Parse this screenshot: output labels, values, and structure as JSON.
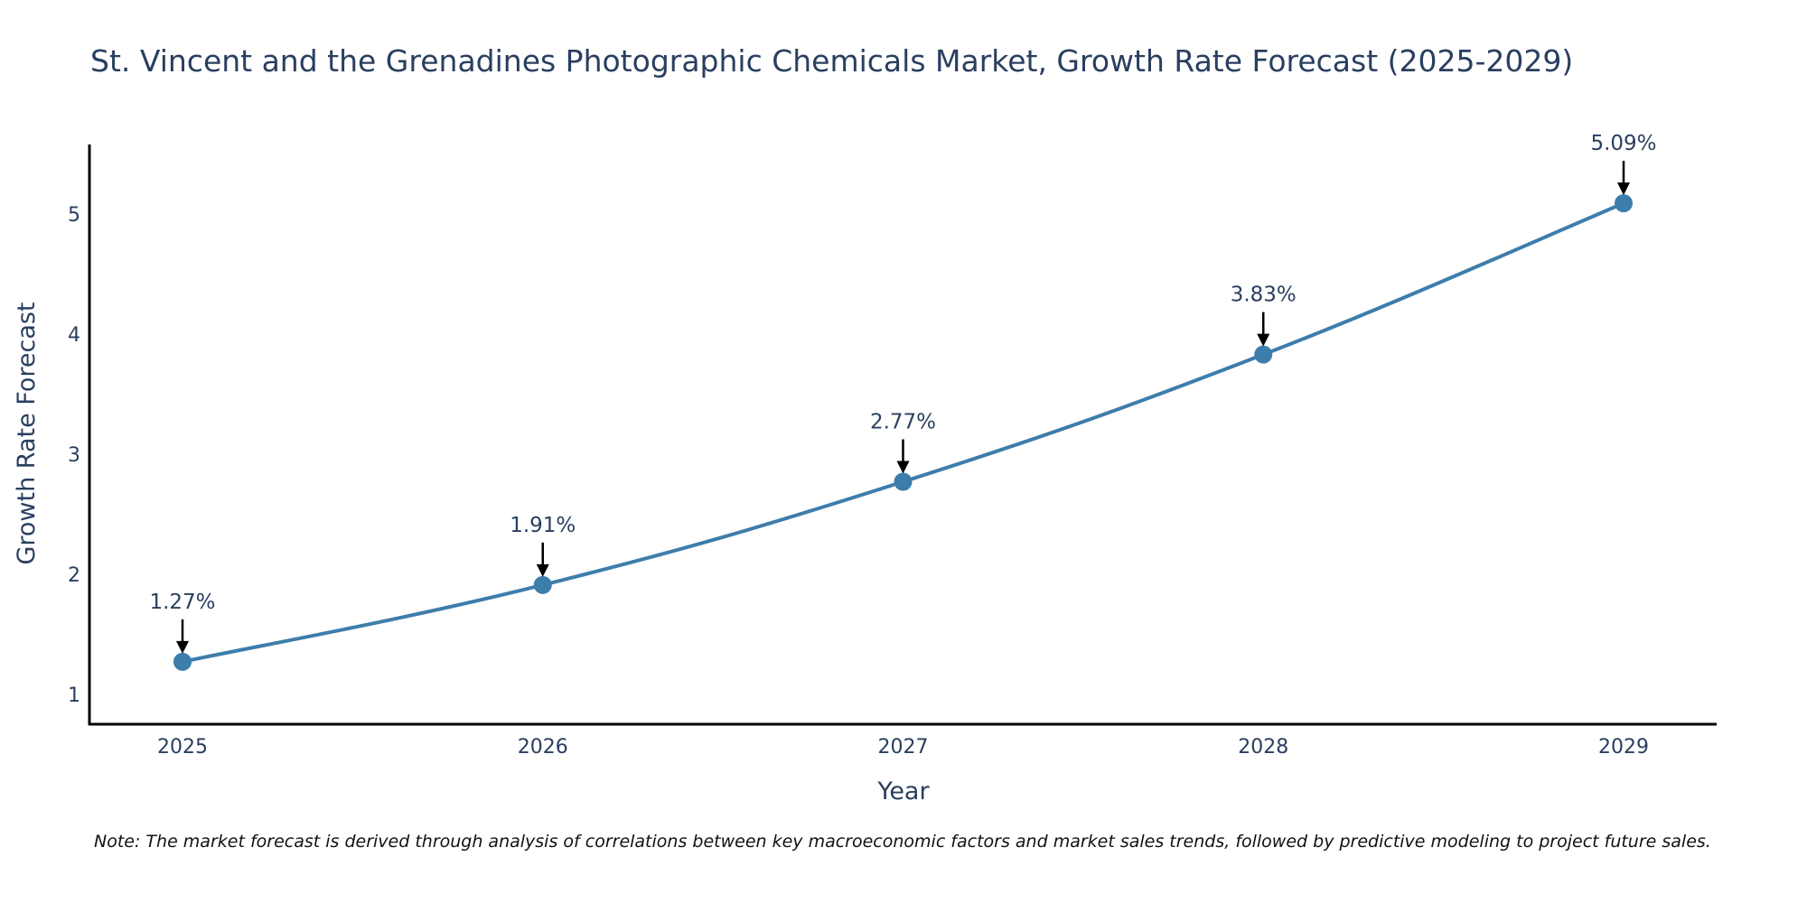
{
  "chart_data": {
    "type": "line",
    "title": "St. Vincent and the Grenadines Photographic Chemicals Market, Growth Rate Forecast (2025-2029)",
    "xlabel": "Year",
    "ylabel": "Growth Rate Forecast",
    "categories": [
      "2025",
      "2026",
      "2027",
      "2028",
      "2029"
    ],
    "values": [
      1.27,
      1.91,
      2.77,
      3.83,
      5.09
    ],
    "data_labels": [
      "1.27%",
      "1.91%",
      "2.77%",
      "3.83%",
      "5.09%"
    ],
    "yticks": [
      1,
      2,
      3,
      4,
      5
    ],
    "ylim": [
      0.75,
      5.58
    ],
    "grid": false,
    "line_color": "#3d7dab",
    "marker_color": "#3d7dab",
    "arrow_color": "#000000"
  },
  "note": "Note: The market forecast is derived through analysis of correlations between key macroeconomic factors and market sales trends, followed by predictive modeling to project future sales."
}
